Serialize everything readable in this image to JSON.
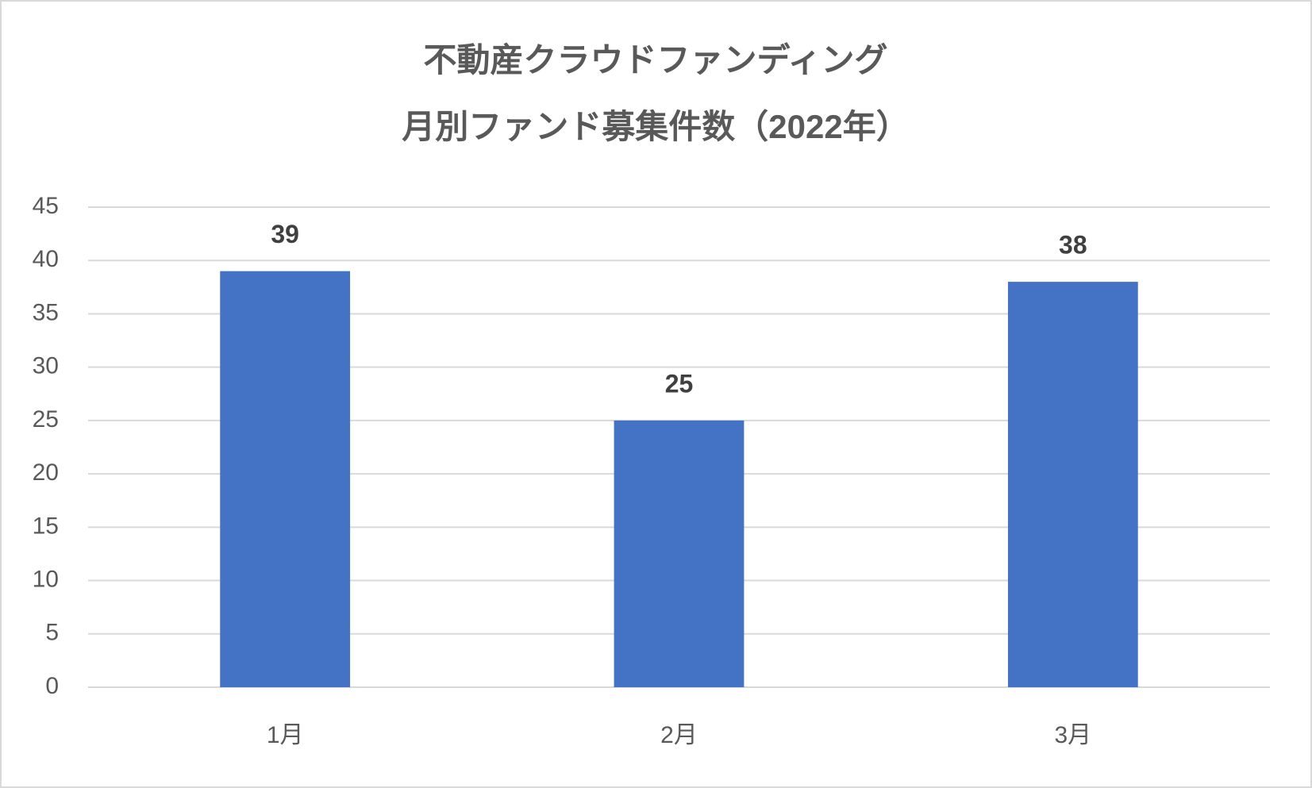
{
  "chart_data": {
    "type": "bar",
    "title": [
      "不動産クラウドファンディング",
      "月別ファンド募集件数（2022年）"
    ],
    "categories": [
      "1月",
      "2月",
      "3月"
    ],
    "values": [
      39,
      25,
      38
    ],
    "color": "#4472c4",
    "ylim": [
      0,
      45
    ],
    "yticks": [
      0,
      5,
      10,
      15,
      20,
      25,
      30,
      35,
      40,
      45
    ],
    "grid": true,
    "data_labels": true
  }
}
